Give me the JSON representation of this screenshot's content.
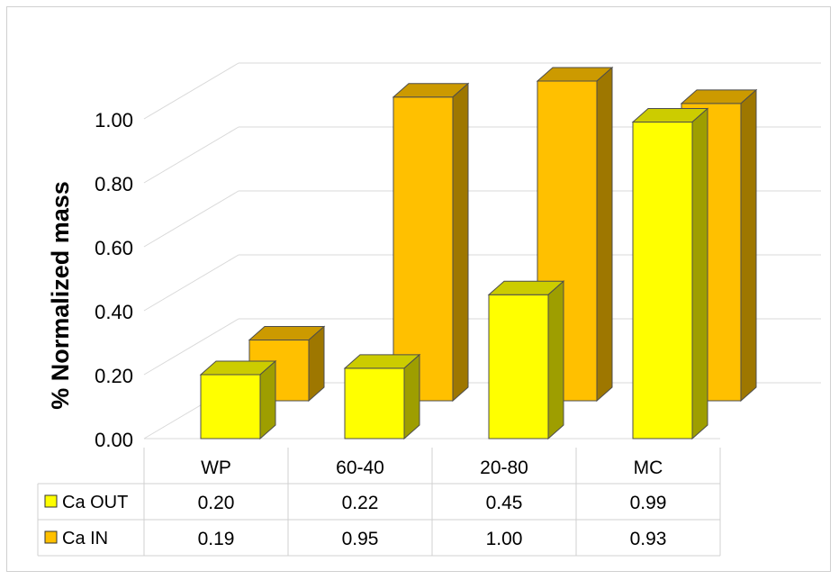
{
  "chart_data": {
    "type": "bar",
    "ylabel": "% Normalized mass",
    "categories": [
      "WP",
      "60-40",
      "20-80",
      "MC"
    ],
    "series": [
      {
        "name": "Ca OUT",
        "values": [
          0.2,
          0.22,
          0.45,
          0.99
        ],
        "color": "#ffff00",
        "labels": [
          "0.20",
          "0.22",
          "0.45",
          "0.99"
        ]
      },
      {
        "name": "Ca IN",
        "values": [
          0.19,
          0.95,
          1.0,
          0.93
        ],
        "color": "#ffc000",
        "labels": [
          "0.19",
          "0.95",
          "1.00",
          "0.93"
        ]
      }
    ],
    "ylim": [
      0,
      1.0
    ],
    "yticks": [
      "0.00",
      "0.20",
      "0.40",
      "0.60",
      "0.80",
      "1.00"
    ],
    "gridlines": true,
    "data_table": true,
    "legend": "data-table"
  }
}
